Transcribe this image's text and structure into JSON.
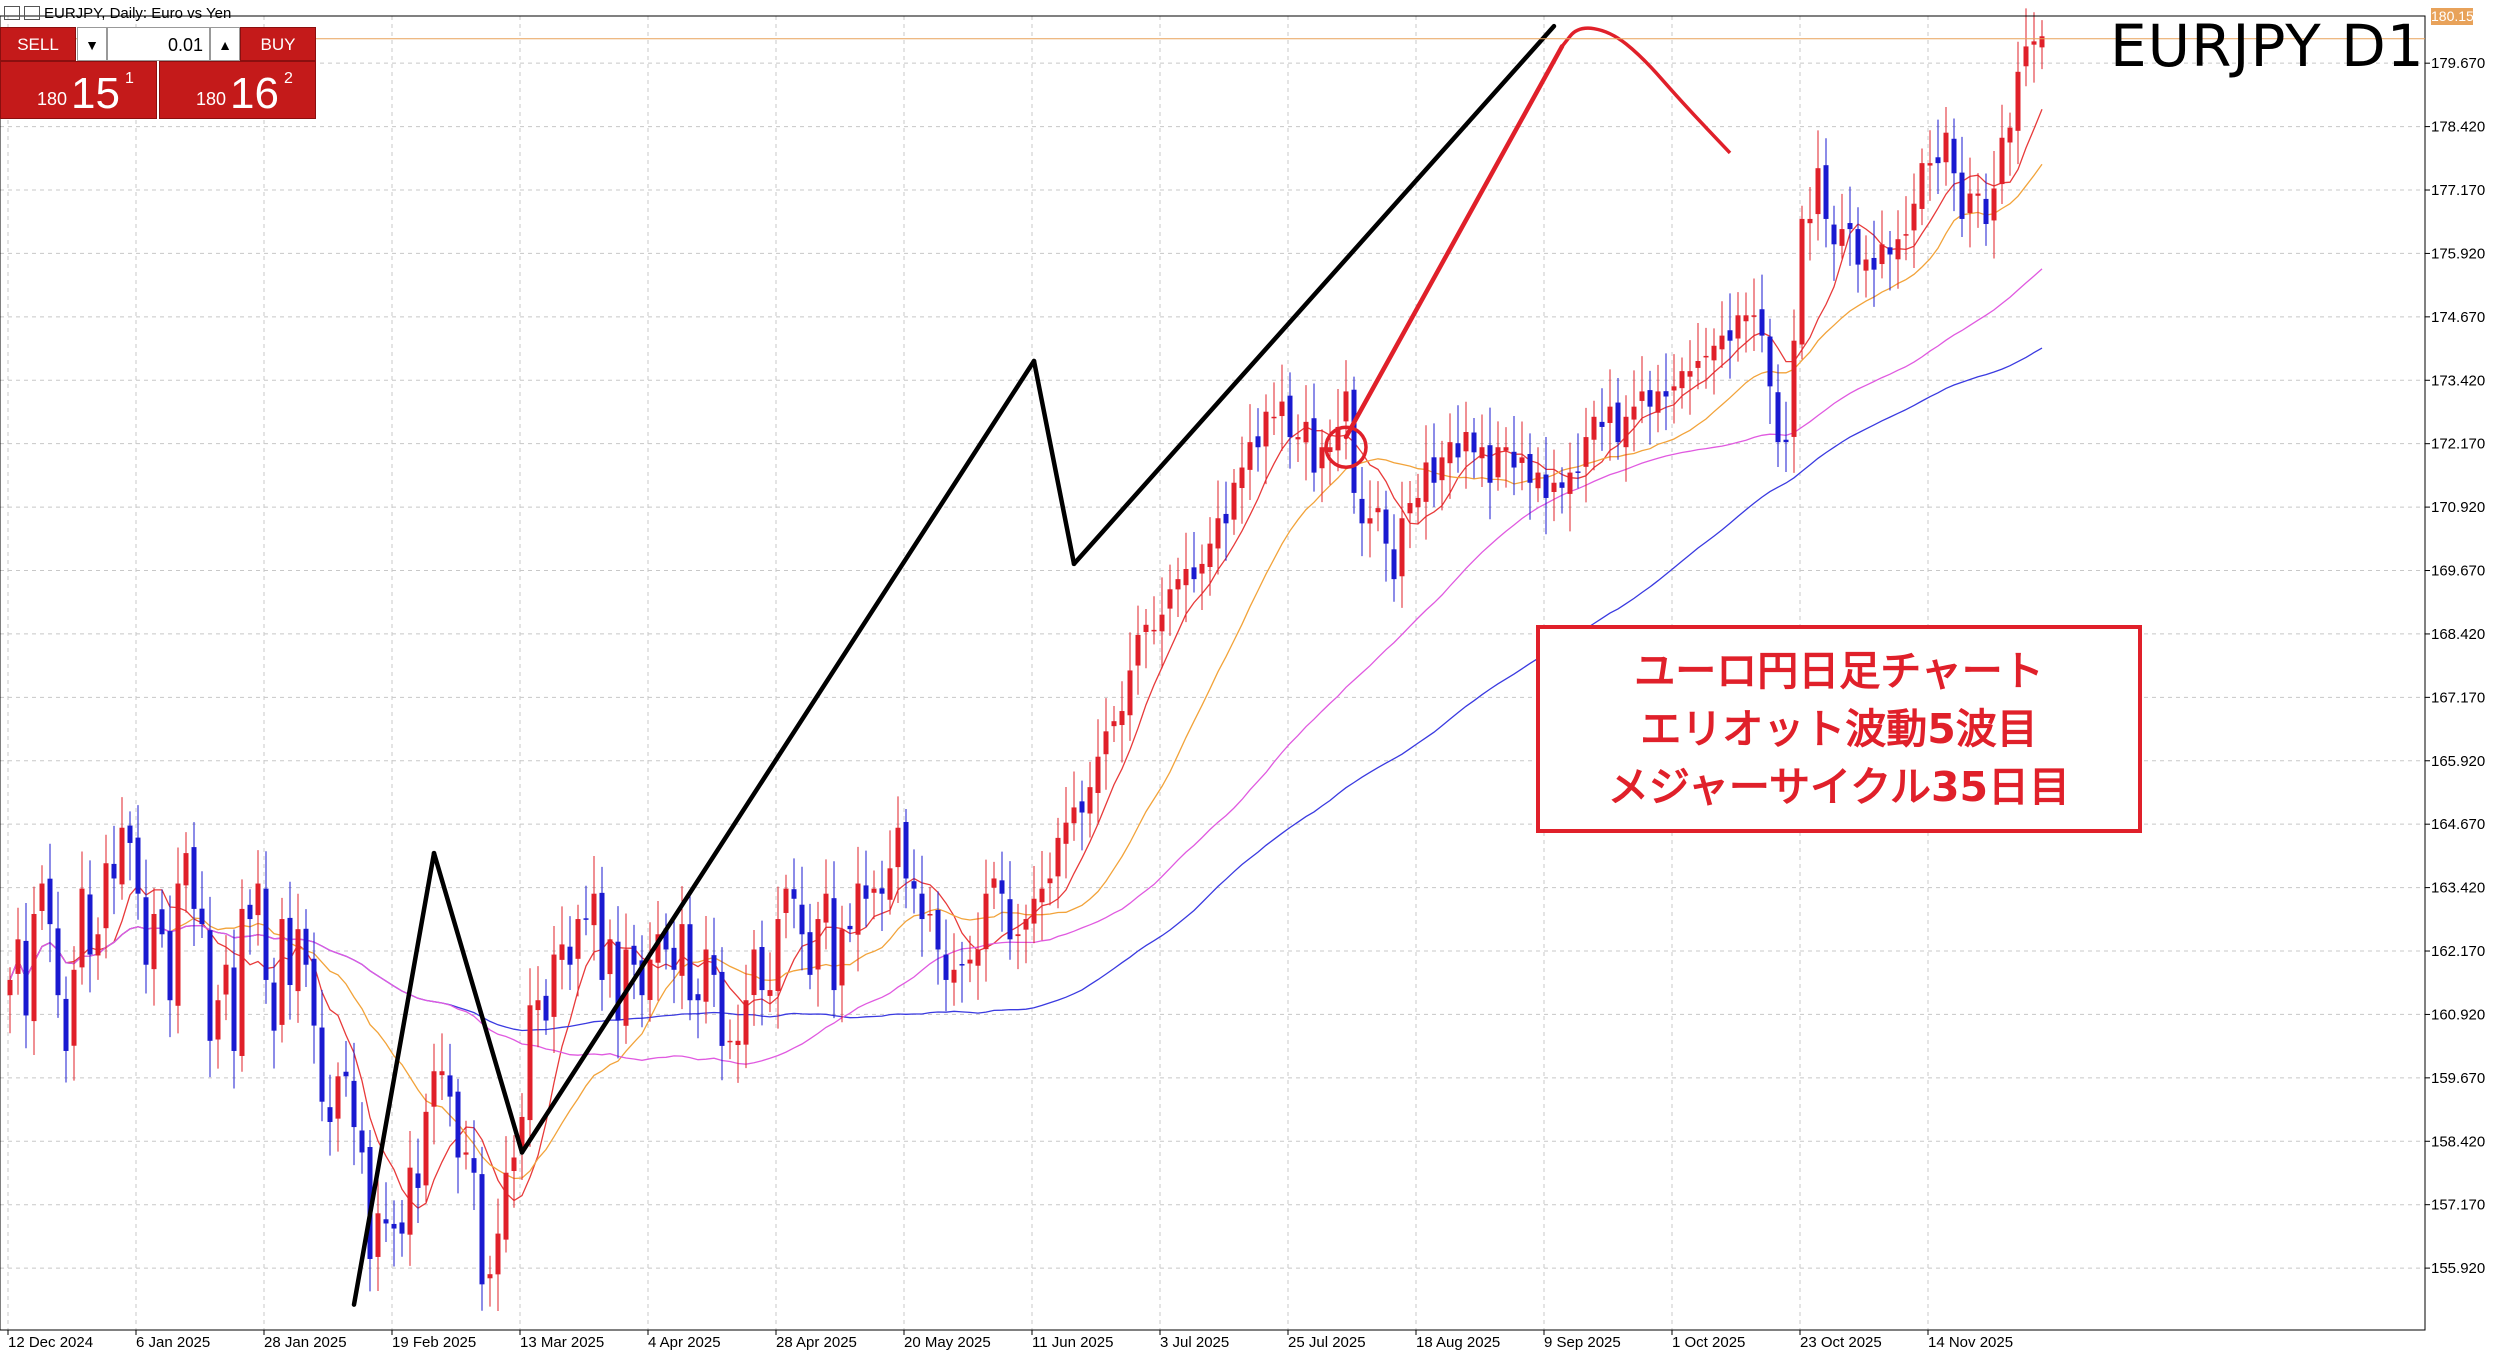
{
  "header": {
    "title": "EURJPY, Daily:  Euro vs Yen"
  },
  "symbol_label": "EURJPY D1",
  "trade_panel": {
    "sell_label": "SELL",
    "buy_label": "BUY",
    "lot": "0.01",
    "dropdown_glyph": "▼",
    "up_glyph": "▲",
    "sell_price": {
      "prefix": "180",
      "big": "15",
      "sup": "1"
    },
    "buy_price": {
      "prefix": "180",
      "big": "16",
      "sup": "2"
    }
  },
  "current_price": "180.151",
  "annotation": {
    "line1": "ユーロ円日足チャート",
    "line2": "エリオット波動5波目",
    "line3": "メジャーサイクル35日目"
  },
  "colors": {
    "bull": "#e0202a",
    "bear": "#1a1ad0",
    "ma_red": "#e83a3a",
    "ma_orange": "#f2a33a",
    "ma_blue": "#3a3ae0",
    "ma_magenta": "#e05ae0",
    "wave": "#000000",
    "projection": "#e0202a",
    "grid": "#c8c8c8"
  },
  "chart_data": {
    "type": "candlestick",
    "title": "EURJPY D1",
    "yticks": [
      "179.670",
      "178.420",
      "177.170",
      "175.920",
      "174.670",
      "173.420",
      "172.170",
      "170.920",
      "169.670",
      "168.420",
      "167.170",
      "165.920",
      "164.670",
      "163.420",
      "162.170",
      "160.920",
      "159.670",
      "158.420",
      "157.170",
      "155.920"
    ],
    "yrange": [
      154.7,
      180.6
    ],
    "xticks": [
      "12 Dec 2024",
      "6 Jan 2025",
      "28 Jan 2025",
      "19 Feb 2025",
      "13 Mar 2025",
      "4 Apr 2025",
      "28 Apr 2025",
      "20 May 2025",
      "11 Jun 2025",
      "3 Jul 2025",
      "25 Jul 2025",
      "18 Aug 2025",
      "9 Sep 2025",
      "1 Oct 2025",
      "23 Oct 2025",
      "14 Nov 2025"
    ],
    "tick_index_step": 16,
    "closes": [
      161.6,
      162.4,
      160.9,
      162.9,
      163.5,
      162.7,
      161.3,
      160.2,
      161.8,
      163.4,
      162.1,
      162.5,
      163.9,
      163.6,
      164.6,
      164.3,
      163.3,
      161.9,
      162.9,
      162.5,
      161.2,
      163.5,
      164.1,
      163.0,
      162.7,
      160.4,
      161.2,
      161.9,
      160.2,
      163.0,
      162.8,
      163.5,
      161.6,
      160.6,
      162.8,
      161.5,
      162.6,
      161.9,
      160.7,
      159.2,
      158.8,
      159.7,
      159.7,
      158.7,
      158.2,
      156.1,
      157.0,
      156.8,
      156.7,
      156.6,
      157.9,
      157.5,
      159.0,
      159.8,
      159.8,
      159.3,
      158.1,
      158.2,
      157.8,
      155.6,
      155.8,
      156.6,
      157.8,
      158.1,
      158.9,
      161.1,
      161.2,
      160.8,
      162.1,
      162.3,
      161.9,
      162.8,
      162.8,
      163.3,
      161.6,
      162.4,
      160.8,
      162.2,
      161.9,
      161.3,
      162.0,
      162.5,
      162.2,
      161.8,
      162.7,
      161.2,
      161.2,
      162.2,
      161.7,
      160.3,
      160.4,
      160.4,
      161.2,
      162.2,
      161.4,
      161.4,
      162.8,
      163.4,
      163.2,
      162.5,
      161.7,
      162.8,
      163.3,
      161.4,
      162.6,
      162.6,
      163.5,
      163.2,
      163.4,
      163.3,
      163.8,
      164.6,
      163.6,
      163.4,
      162.8,
      162.9,
      162.2,
      161.6,
      161.8,
      161.9,
      162.0,
      162.2,
      163.3,
      163.6,
      163.3,
      162.4,
      162.5,
      162.8,
      163.2,
      163.4,
      163.6,
      164.4,
      164.7,
      165.0,
      164.9,
      165.4,
      166.0,
      166.5,
      166.7,
      166.9,
      167.7,
      168.4,
      168.6,
      168.5,
      168.8,
      169.3,
      169.5,
      169.7,
      169.5,
      169.8,
      170.2,
      170.7,
      170.6,
      171.4,
      171.7,
      172.2,
      172.1,
      172.8,
      172.7,
      173.0,
      172.3,
      172.3,
      172.6,
      171.6,
      172.1,
      172.1,
      172.5,
      173.2,
      171.2,
      170.6,
      170.7,
      170.9,
      170.2,
      169.5,
      170.7,
      171.0,
      171.1,
      171.8,
      171.4,
      171.9,
      172.2,
      171.9,
      172.4,
      172.0,
      172.1,
      171.4,
      172.1,
      172.1,
      171.7,
      171.9,
      171.4,
      171.6,
      171.1,
      171.4,
      171.3,
      171.6,
      171.6,
      172.3,
      172.7,
      172.5,
      172.9,
      172.2,
      172.7,
      172.9,
      173.2,
      172.9,
      173.2,
      173.1,
      173.3,
      173.6,
      173.6,
      173.8,
      173.9,
      174.1,
      174.3,
      174.2,
      174.7,
      174.7,
      174.7,
      174.3,
      173.3,
      172.2,
      172.2,
      174.2,
      176.6,
      176.6,
      177.6,
      176.6,
      176.1,
      176.4,
      176.4,
      175.7,
      175.8,
      175.6,
      176.1,
      175.9,
      176.2,
      176.3,
      176.9,
      177.7,
      177.7,
      177.7,
      178.3,
      177.5,
      176.6,
      177.1,
      177.1,
      176.5,
      177.2,
      178.2,
      178.4,
      179.5,
      180.0,
      180.1,
      180.2
    ],
    "moving_averages": [
      {
        "color": "#e83a3a",
        "period": 8
      },
      {
        "color": "#f2a33a",
        "period": 21
      },
      {
        "color": "#3a3ae0",
        "period": 90
      },
      {
        "color": "#e05ae0",
        "period": 55
      }
    ],
    "elliott_wave_points": [
      {
        "index": 43,
        "price": 155.2
      },
      {
        "index": 53,
        "price": 164.1
      },
      {
        "index": 64,
        "price": 158.2
      },
      {
        "index": 128,
        "price": 173.8
      },
      {
        "index": 133,
        "price": 169.8
      },
      {
        "index": 193,
        "price": 180.4
      }
    ],
    "wave_lines": [
      {
        "from": {
          "index": 43,
          "price": 155.2
        },
        "to": {
          "index": 53,
          "price": 164.1
        }
      },
      {
        "from": {
          "index": 53,
          "price": 164.1
        },
        "to": {
          "index": 64,
          "price": 158.2
        }
      },
      {
        "from": {
          "index": 64,
          "price": 158.2
        },
        "to": {
          "index": 128,
          "price": 173.8
        }
      },
      {
        "from": {
          "index": 128,
          "price": 173.8
        },
        "to": {
          "index": 133,
          "price": 169.8
        }
      },
      {
        "from": {
          "index": 133,
          "price": 169.8
        },
        "to": {
          "index": 193,
          "price": 180.4
        }
      }
    ],
    "projection": {
      "line_from": {
        "index": 167,
        "price": 172.3
      },
      "line_to": {
        "index": 194,
        "price": 180.0
      },
      "cycle_low_marker": {
        "index": 167,
        "price": 172.1
      },
      "arc_points": [
        {
          "index": 194,
          "price": 180.0
        },
        {
          "index": 196,
          "price": 180.4
        },
        {
          "index": 200,
          "price": 180.3
        },
        {
          "index": 204,
          "price": 179.8
        },
        {
          "index": 209,
          "price": 178.9
        },
        {
          "index": 215,
          "price": 177.9
        }
      ]
    }
  }
}
